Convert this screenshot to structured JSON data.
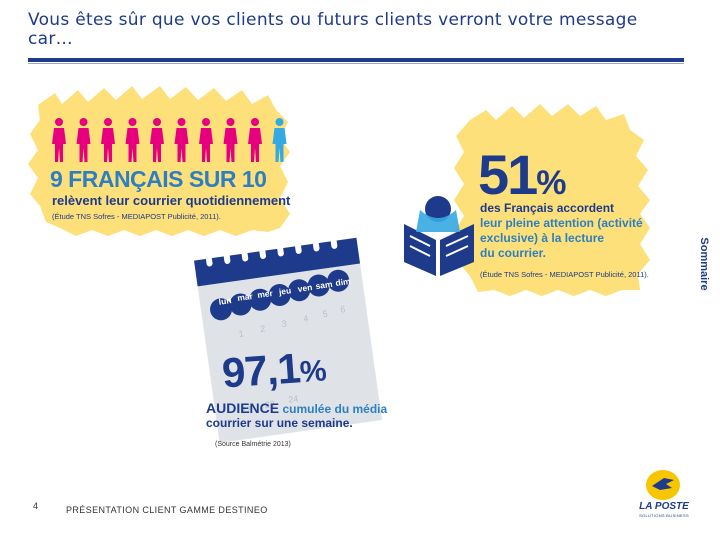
{
  "slide": {
    "title": "Vous êtes sûr que vos clients ou futurs clients verront votre message car…",
    "side_tab": "Sommaire",
    "page_number": "4",
    "footer": "PRÉSENTATION CLIENT GAMME DESTINEO",
    "source": "(Source Balmétrie 2013)"
  },
  "stat1": {
    "headline": "9 FRANÇAIS SUR 10",
    "line": "relèvent leur courrier quotidiennement",
    "source": "(Étude TNS Sofres - MEDIAPOST Publicité, 2011).",
    "people_total": 10,
    "people_highlighted": 9,
    "highlight_color": "#e6007e",
    "other_color": "#35a9e1",
    "burst_color": "#fde07a"
  },
  "stat2": {
    "value": "51",
    "unit": "%",
    "line1": "des Français accordent",
    "line2": "leur pleine attention (activité",
    "line3": "exclusive) à la lecture",
    "line4": "du courrier.",
    "source": "(Étude TNS Sofres - MEDIAPOST Publicité, 2011).",
    "burst_color": "#fde07a",
    "icon": "reader-icon"
  },
  "stat3": {
    "days": [
      "lun",
      "mar",
      "mer",
      "jeu",
      "ven",
      "sam",
      "dim"
    ],
    "value": "97,1",
    "unit": "%",
    "headline": "AUDIENCE",
    "line1": "cumulée du média",
    "line2": "courrier sur une semaine.",
    "calendar_color": "#1e3a8a",
    "icon": "calendar-icon"
  },
  "logo": {
    "name": "LA POSTE",
    "tagline": "SOLUTIONS BUSINESS"
  }
}
